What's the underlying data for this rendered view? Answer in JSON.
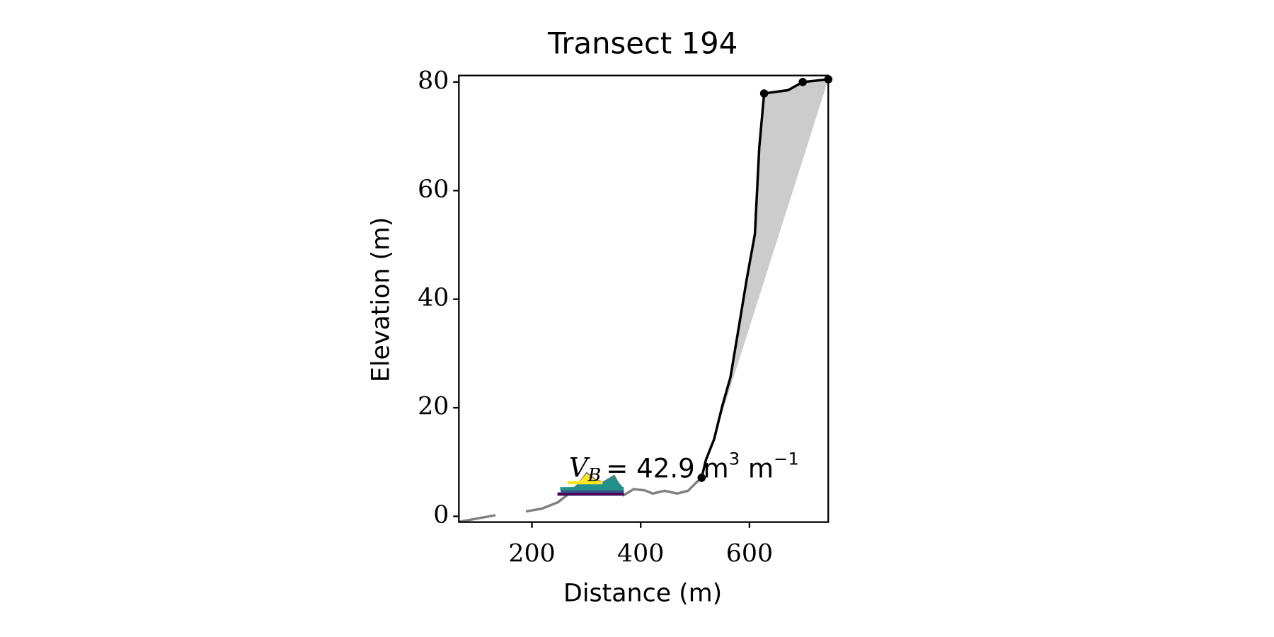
{
  "chart_data": {
    "type": "line",
    "title": "Transect 194",
    "x_label": "Distance (m)",
    "y_label": "Elevation (m)",
    "xlim": [
      65.7,
      744.9
    ],
    "ylim": [
      -1.06,
      81.2
    ],
    "xticks": [
      200,
      400,
      600
    ],
    "yticks": [
      0,
      20,
      40,
      60,
      80
    ],
    "profile": {
      "color": "#808080",
      "x": [
        66,
        133,
        null,
        189,
        218,
        248,
        271,
        286,
        301,
        316,
        331,
        351,
        369,
        387,
        407,
        422,
        444,
        467,
        487,
        502,
        512
      ],
      "y": [
        -1,
        0.2,
        null,
        0.9,
        1.4,
        2.6,
        4.4,
        5.9,
        7.9,
        6.7,
        6.2,
        7.4,
        3.9,
        5.0,
        4.8,
        4.2,
        4.7,
        4.2,
        4.7,
        6.2,
        7.1
      ]
    },
    "cliff": {
      "color": "#000000",
      "fill": "#cccccc",
      "x": [
        512,
        520,
        535,
        550,
        565,
        580,
        595,
        610,
        618,
        627,
        671,
        698,
        745
      ],
      "y": [
        7.1,
        10.4,
        14.2,
        20.3,
        25.6,
        34.6,
        43.7,
        52,
        67.9,
        77.9,
        78.5,
        80,
        80.5
      ]
    },
    "points": {
      "x": [
        512,
        627,
        698,
        745
      ],
      "y": [
        7.1,
        77.9,
        80,
        80.5
      ]
    },
    "levels": [
      {
        "color": "#440154",
        "y": 4.1,
        "x": [
          247,
          369
        ]
      },
      {
        "color": "#3b528b",
        "y": 4.6,
        "x": [
          253,
          369
        ]
      },
      {
        "color": "#21918c",
        "y": 5.1,
        "x": [
          252,
          369
        ]
      },
      {
        "color": "#fde725",
        "y": 6.2,
        "x": [
          266,
          330
        ]
      }
    ],
    "annotation": {
      "symbol": "V",
      "subscript": "B",
      "equals": "= 42.9 m",
      "sup1": "3",
      "unit2": "m",
      "sup2": "−1"
    }
  }
}
